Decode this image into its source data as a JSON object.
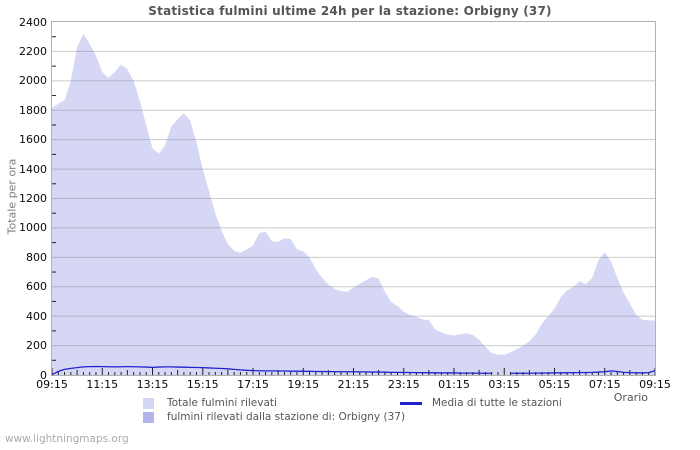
{
  "title": "Statistica fulmini ultime 24h per la stazione: Orbigny (37)",
  "watermark": "www.lightningmaps.org",
  "axes": {
    "y_label": "Totale per ora",
    "x_label": "Orario"
  },
  "legend": {
    "total_label": "Totale fulmini rilevati",
    "media_label": "Media di tutte le stazioni",
    "station_label": "fulmini rilevati dalla stazione di: Orbigny (37)"
  },
  "colors": {
    "area_total": "#d6d7f4",
    "area_station": "#b2b4e9",
    "line_media": "#2222cc",
    "grid": "#c9c9c9",
    "border": "#b0b0b0",
    "tick": "#222222"
  },
  "chart_data": {
    "type": "area",
    "title": "Statistica fulmini ultime 24h per la stazione: Orbigny (37)",
    "xlabel": "Orario",
    "ylabel": "Totale per ora",
    "ylim": [
      0,
      2400
    ],
    "y_ticks": [
      0,
      200,
      400,
      600,
      800,
      1000,
      1200,
      1400,
      1600,
      1800,
      2000,
      2200,
      2400
    ],
    "x_tick_labels": [
      "09:15",
      "11:15",
      "13:15",
      "15:15",
      "17:15",
      "19:15",
      "21:15",
      "23:15",
      "01:15",
      "03:15",
      "05:15",
      "07:15",
      "09:15"
    ],
    "x_span_hours": 24,
    "sample_interval_minutes": 15,
    "grid": "horizontal-only",
    "legend_position": "bottom",
    "series": [
      {
        "name": "Totale fulmini rilevati",
        "type": "area",
        "color": "#d6d7f4",
        "values": [
          1815,
          1845,
          1870,
          2000,
          2230,
          2320,
          2250,
          2170,
          2060,
          2020,
          2060,
          2110,
          2080,
          2000,
          1860,
          1700,
          1540,
          1505,
          1560,
          1690,
          1740,
          1780,
          1730,
          1580,
          1400,
          1250,
          1100,
          980,
          890,
          845,
          830,
          855,
          880,
          965,
          975,
          910,
          905,
          930,
          925,
          855,
          840,
          800,
          720,
          660,
          615,
          585,
          570,
          565,
          595,
          620,
          645,
          668,
          655,
          565,
          495,
          470,
          430,
          408,
          396,
          378,
          372,
          310,
          290,
          275,
          268,
          278,
          283,
          272,
          240,
          190,
          150,
          138,
          138,
          155,
          175,
          200,
          230,
          275,
          350,
          400,
          450,
          530,
          575,
          600,
          638,
          618,
          660,
          780,
          835,
          770,
          660,
          560,
          485,
          410,
          375,
          372,
          370
        ]
      },
      {
        "name": "fulmini rilevati dalla stazione di: Orbigny (37)",
        "type": "area",
        "color": "#b2b4e9",
        "values": [
          0,
          0,
          0,
          0,
          0,
          0,
          0,
          0,
          0,
          0,
          0,
          0,
          0,
          0,
          0,
          0,
          0,
          0,
          0,
          0,
          0,
          0,
          0,
          0,
          0,
          0,
          0,
          0,
          0,
          0,
          0,
          0,
          0,
          0,
          0,
          0,
          0,
          0,
          0,
          0,
          0,
          0,
          0,
          0,
          0,
          0,
          0,
          0,
          0,
          0,
          0,
          0,
          0,
          0,
          0,
          0,
          0,
          0,
          0,
          0,
          0,
          0,
          0,
          0,
          0,
          0,
          0,
          0,
          0,
          0,
          0,
          0,
          0,
          0,
          0,
          0,
          0,
          0,
          0,
          0,
          0,
          0,
          0,
          0,
          0,
          0,
          0,
          0,
          0,
          0,
          0,
          0,
          0,
          0,
          0,
          0,
          0
        ]
      },
      {
        "name": "Media di tutte le stazioni",
        "type": "line",
        "color": "#2222cc",
        "values": [
          2,
          25,
          38,
          45,
          50,
          55,
          57,
          58,
          57,
          56,
          55,
          56,
          57,
          56,
          55,
          54,
          52,
          54,
          55,
          55,
          54,
          53,
          52,
          51,
          50,
          48,
          46,
          44,
          42,
          38,
          35,
          32,
          30,
          29,
          28,
          28,
          27,
          27,
          26,
          26,
          25,
          25,
          24,
          24,
          23,
          23,
          22,
          22,
          22,
          21,
          21,
          20,
          20,
          19,
          18,
          18,
          17,
          17,
          16,
          16,
          15,
          15,
          14,
          14,
          14,
          13,
          13,
          13,
          12,
          12,
          12,
          null,
          null,
          12,
          12,
          12,
          12,
          13,
          13,
          14,
          14,
          15,
          15,
          16,
          16,
          17,
          18,
          20,
          22,
          28,
          24,
          18,
          16,
          15,
          14,
          16,
          30
        ]
      }
    ]
  }
}
